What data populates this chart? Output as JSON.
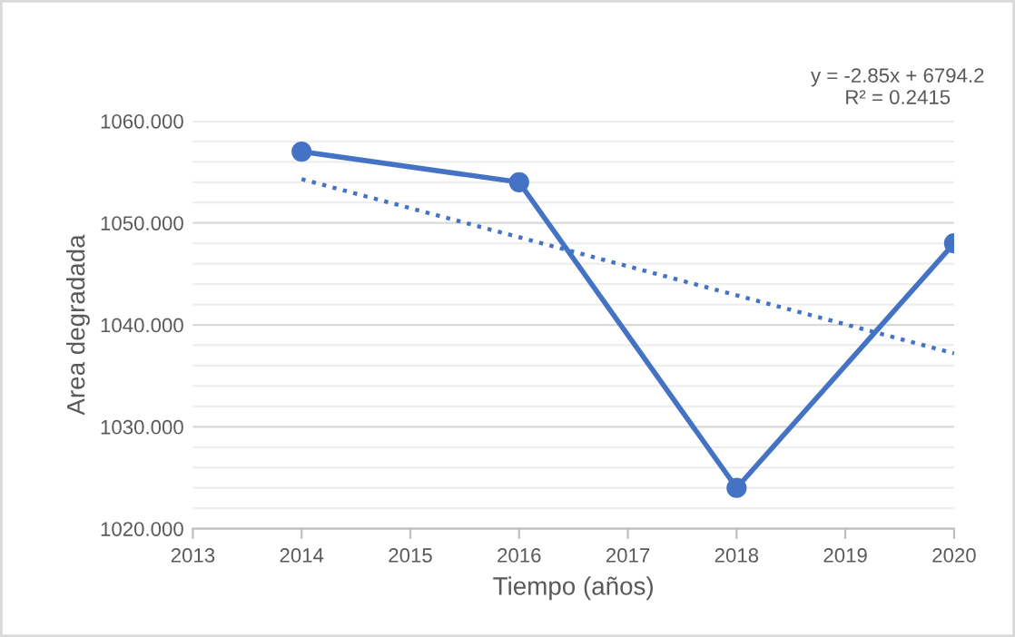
{
  "chart_data": {
    "type": "line",
    "xlabel": "Tiempo (años)",
    "ylabel": "Area degradada",
    "x": [
      2014,
      2016,
      2018,
      2020
    ],
    "series": [
      {
        "color": "#4472c4",
        "values": [
          1057,
          1054,
          1024,
          1048
        ],
        "marker": "circle",
        "line_style": "solid"
      },
      {
        "color": "#4472c4",
        "x": [
          2014,
          2020
        ],
        "values": [
          1054.3,
          1037.2
        ],
        "marker": "none",
        "line_style": "dotted"
      }
    ],
    "xlim": [
      2013,
      2020
    ],
    "xticks": [
      2013,
      2014,
      2015,
      2016,
      2017,
      2018,
      2019,
      2020
    ],
    "ylim": [
      1020,
      1060
    ],
    "yticks": [
      {
        "value": 1020,
        "label": "1020.000"
      },
      {
        "value": 1022,
        "label": null
      },
      {
        "value": 1024,
        "label": null
      },
      {
        "value": 1026,
        "label": null
      },
      {
        "value": 1028,
        "label": null
      },
      {
        "value": 1030,
        "label": "1030.000"
      },
      {
        "value": 1032,
        "label": null
      },
      {
        "value": 1034,
        "label": null
      },
      {
        "value": 1036,
        "label": null
      },
      {
        "value": 1038,
        "label": null
      },
      {
        "value": 1040,
        "label": "1040.000"
      },
      {
        "value": 1042,
        "label": null
      },
      {
        "value": 1044,
        "label": null
      },
      {
        "value": 1046,
        "label": null
      },
      {
        "value": 1048,
        "label": null
      },
      {
        "value": 1050,
        "label": "1050.000"
      },
      {
        "value": 1052,
        "label": null
      },
      {
        "value": 1054,
        "label": null
      },
      {
        "value": 1056,
        "label": null
      },
      {
        "value": 1058,
        "label": null
      },
      {
        "value": 1060,
        "label": "1060.000"
      }
    ],
    "grid": "y",
    "annotations": [
      "y = -2.85x + 6794.2\nR² = 0.2415"
    ]
  }
}
